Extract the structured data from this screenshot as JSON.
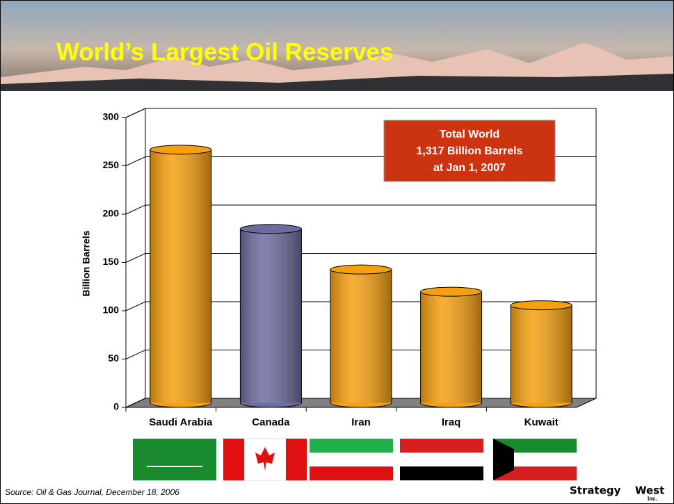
{
  "chart_data": {
    "type": "bar",
    "title": "World’s Largest Oil Reserves",
    "y_label": "Billion Barrels",
    "categories": [
      "Saudi Arabia",
      "Canada",
      "Iran",
      "Iraq",
      "Kuwait"
    ],
    "values": [
      262,
      180,
      138,
      115,
      101
    ],
    "colors": [
      "#f5a011",
      "#6c6c9f",
      "#f5a011",
      "#f5a011",
      "#f5a011"
    ],
    "ylim": [
      0,
      300
    ],
    "yticks": [
      0,
      50,
      100,
      150,
      200,
      250,
      300
    ],
    "grid": true,
    "annotation": [
      "Total World",
      "1,317 Billion Barrels",
      "at Jan 1, 2007"
    ]
  },
  "footer": {
    "source": "Source: Oil & Gas Journal, December 18, 2006",
    "logo": "Strategy",
    "logo2": "West",
    "logo_sub": "Inc."
  }
}
